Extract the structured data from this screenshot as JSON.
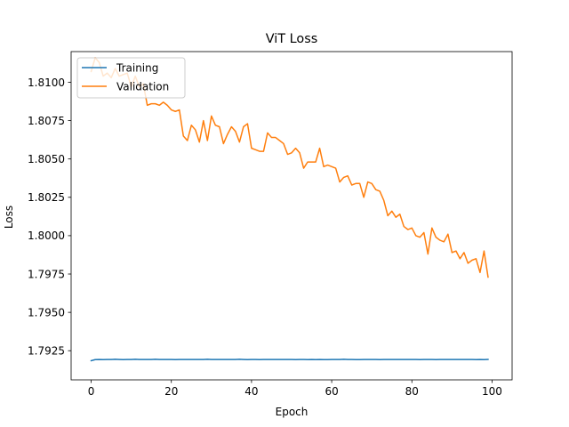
{
  "chart_data": {
    "type": "line",
    "title": "ViT Loss",
    "xlabel": "Epoch",
    "ylabel": "Loss",
    "xlim": [
      -5,
      105
    ],
    "ylim": [
      1.7906,
      1.812
    ],
    "xticks": [
      0,
      20,
      40,
      60,
      80,
      100
    ],
    "yticks": [
      1.7925,
      1.795,
      1.7975,
      1.8,
      1.8025,
      1.805,
      1.8075,
      1.81
    ],
    "ytick_labels": [
      "1.7925",
      "1.7950",
      "1.7975",
      "1.8000",
      "1.8025",
      "1.8050",
      "1.8075",
      "1.8100"
    ],
    "grid": false,
    "legend_position": "top-left",
    "series": [
      {
        "name": "Training",
        "color": "#1f77b4",
        "values": [
          1.79185,
          1.79192,
          1.79193,
          1.79192,
          1.79193,
          1.79193,
          1.79194,
          1.79193,
          1.79192,
          1.79193,
          1.79193,
          1.79194,
          1.79193,
          1.79193,
          1.79193,
          1.79193,
          1.79194,
          1.79193,
          1.79193,
          1.79193,
          1.79193,
          1.79192,
          1.79193,
          1.79193,
          1.79193,
          1.79193,
          1.79193,
          1.79193,
          1.79193,
          1.79194,
          1.79193,
          1.79193,
          1.79193,
          1.79193,
          1.79193,
          1.79193,
          1.79193,
          1.79194,
          1.79193,
          1.79192,
          1.79193,
          1.79193,
          1.79192,
          1.79193,
          1.79193,
          1.79193,
          1.79193,
          1.79193,
          1.79193,
          1.79193,
          1.79193,
          1.79192,
          1.79193,
          1.79193,
          1.79192,
          1.79193,
          1.79192,
          1.79193,
          1.79192,
          1.79192,
          1.79193,
          1.79193,
          1.79193,
          1.79194,
          1.79193,
          1.79193,
          1.79192,
          1.79192,
          1.79193,
          1.79193,
          1.79193,
          1.79193,
          1.79192,
          1.79193,
          1.79193,
          1.79193,
          1.79193,
          1.79193,
          1.79193,
          1.79193,
          1.79193,
          1.79193,
          1.79192,
          1.79193,
          1.79193,
          1.79193,
          1.79192,
          1.79193,
          1.79193,
          1.79193,
          1.79193,
          1.79193,
          1.79193,
          1.79193,
          1.79193,
          1.79193,
          1.79192,
          1.79193,
          1.79192,
          1.79193
        ]
      },
      {
        "name": "Validation",
        "color": "#ff7f0e",
        "values": [
          1.8107,
          1.8116,
          1.8113,
          1.8104,
          1.8106,
          1.8103,
          1.8109,
          1.8104,
          1.8105,
          1.8106,
          1.8097,
          1.8104,
          1.8097,
          1.8099,
          1.8085,
          1.8086,
          1.8086,
          1.8085,
          1.8087,
          1.8085,
          1.8082,
          1.8081,
          1.8082,
          1.8065,
          1.8062,
          1.8072,
          1.8069,
          1.8061,
          1.8075,
          1.8062,
          1.8078,
          1.8072,
          1.8071,
          1.806,
          1.8066,
          1.8071,
          1.8068,
          1.8061,
          1.8071,
          1.8073,
          1.8057,
          1.8056,
          1.8055,
          1.8055,
          1.8067,
          1.8064,
          1.8064,
          1.8062,
          1.806,
          1.8053,
          1.8054,
          1.8057,
          1.8054,
          1.8044,
          1.8048,
          1.8048,
          1.8048,
          1.8057,
          1.8045,
          1.8046,
          1.8045,
          1.8044,
          1.8035,
          1.8038,
          1.8039,
          1.8033,
          1.8034,
          1.8034,
          1.8025,
          1.8035,
          1.8034,
          1.803,
          1.8029,
          1.8023,
          1.8013,
          1.8016,
          1.8012,
          1.8014,
          1.8006,
          1.8004,
          1.8005,
          1.8,
          1.7999,
          1.8002,
          1.7988,
          1.8005,
          1.7999,
          1.7997,
          1.7996,
          1.8001,
          1.7989,
          1.799,
          1.7985,
          1.7989,
          1.7982,
          1.7984,
          1.7985,
          1.7976,
          1.799,
          1.7973
        ]
      }
    ]
  }
}
